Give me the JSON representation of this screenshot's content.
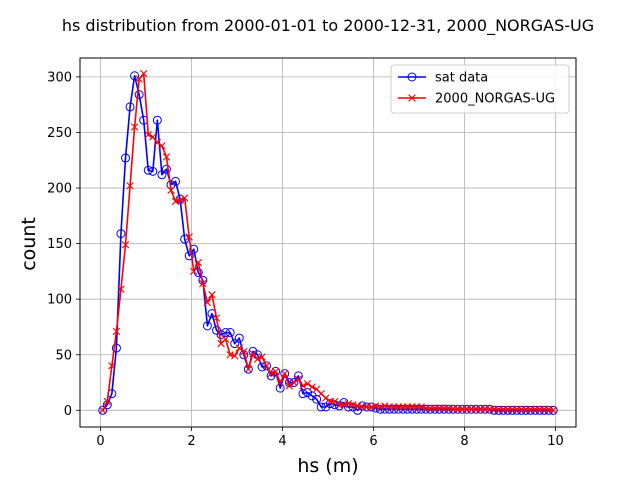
{
  "chart_data": {
    "type": "line",
    "title": "hs distribution from 2000-01-01 to 2000-12-31, 2000_NORGAS-UG",
    "xlabel": "hs (m)",
    "ylabel": "count",
    "xlim": [
      -0.45,
      10.45
    ],
    "ylim": [
      -15,
      317
    ],
    "xticks": [
      0,
      2,
      4,
      6,
      8,
      10
    ],
    "xtick_labels": [
      "0",
      "2",
      "4",
      "6",
      "8",
      "10"
    ],
    "yticks": [
      0,
      50,
      100,
      150,
      200,
      250,
      300
    ],
    "ytick_labels": [
      "0",
      "50",
      "100",
      "150",
      "200",
      "250",
      "300"
    ],
    "grid": true,
    "legend_position": "top-right",
    "series": [
      {
        "name": "sat data",
        "color": "#0000ff",
        "marker": "circle-open",
        "x": [
          0.05,
          0.15,
          0.25,
          0.35,
          0.45,
          0.55,
          0.65,
          0.75,
          0.85,
          0.95,
          1.05,
          1.15,
          1.25,
          1.35,
          1.45,
          1.55,
          1.65,
          1.75,
          1.85,
          1.95,
          2.05,
          2.15,
          2.25,
          2.35,
          2.45,
          2.55,
          2.65,
          2.75,
          2.85,
          2.95,
          3.05,
          3.15,
          3.25,
          3.35,
          3.45,
          3.55,
          3.65,
          3.75,
          3.85,
          3.95,
          4.05,
          4.15,
          4.25,
          4.35,
          4.45,
          4.55,
          4.65,
          4.75,
          4.85,
          4.95,
          5.05,
          5.15,
          5.25,
          5.35,
          5.45,
          5.55,
          5.65,
          5.75,
          5.85,
          5.95,
          6.05,
          6.15,
          6.25,
          6.35,
          6.45,
          6.55,
          6.65,
          6.75,
          6.85,
          6.95,
          7.05,
          7.15,
          7.25,
          7.35,
          7.45,
          7.55,
          7.65,
          7.75,
          7.85,
          7.95,
          8.05,
          8.15,
          8.25,
          8.35,
          8.45,
          8.55,
          8.65,
          8.75,
          8.85,
          8.95,
          9.05,
          9.15,
          9.25,
          9.35,
          9.45,
          9.55,
          9.65,
          9.75,
          9.85,
          9.95
        ],
        "y": [
          0,
          5,
          15,
          56,
          159,
          227,
          273,
          301,
          284,
          261,
          216,
          215,
          261,
          212,
          217,
          203,
          206,
          190,
          154,
          139,
          145,
          124,
          117,
          76,
          87,
          72,
          68,
          70,
          70,
          60,
          65,
          50,
          37,
          53,
          50,
          39,
          40,
          31,
          35,
          20,
          33,
          25,
          25,
          31,
          15,
          16,
          13,
          10,
          3,
          3,
          6,
          5,
          4,
          7,
          3,
          3,
          0,
          4,
          3,
          3,
          2,
          1,
          1,
          1,
          1,
          1,
          1,
          1,
          1,
          1,
          1,
          1,
          1,
          1,
          1,
          1,
          1,
          1,
          1,
          1,
          1,
          1,
          1,
          1,
          1,
          1,
          0,
          0,
          0,
          0,
          0,
          0,
          0,
          0,
          0,
          0,
          0,
          0,
          0,
          0
        ]
      },
      {
        "name": "2000_NORGAS-UG",
        "color": "#ff0000",
        "marker": "x",
        "x": [
          0.05,
          0.15,
          0.25,
          0.35,
          0.45,
          0.55,
          0.65,
          0.75,
          0.85,
          0.95,
          1.05,
          1.15,
          1.25,
          1.35,
          1.45,
          1.55,
          1.65,
          1.75,
          1.85,
          1.95,
          2.05,
          2.15,
          2.25,
          2.35,
          2.45,
          2.55,
          2.65,
          2.75,
          2.85,
          2.95,
          3.05,
          3.15,
          3.25,
          3.35,
          3.45,
          3.55,
          3.65,
          3.75,
          3.85,
          3.95,
          4.05,
          4.15,
          4.25,
          4.35,
          4.45,
          4.55,
          4.65,
          4.75,
          4.85,
          4.95,
          5.05,
          5.15,
          5.25,
          5.35,
          5.45,
          5.55,
          5.65,
          5.75,
          5.85,
          5.95,
          6.05,
          6.15,
          6.25,
          6.35,
          6.45,
          6.55,
          6.65,
          6.75,
          6.85,
          6.95,
          7.05,
          7.15,
          7.25,
          7.35,
          7.45,
          7.55,
          7.65,
          7.75,
          7.85,
          7.95,
          8.05,
          8.15,
          8.25,
          8.35,
          8.45,
          8.55,
          8.65,
          8.75,
          8.85,
          8.95,
          9.05,
          9.15,
          9.25,
          9.35,
          9.45,
          9.55,
          9.65,
          9.75,
          9.85,
          9.95
        ],
        "y": [
          0,
          8,
          40,
          71,
          109,
          149,
          202,
          255,
          298,
          303,
          248,
          246,
          241,
          238,
          228,
          198,
          188,
          189,
          191,
          156,
          125,
          133,
          114,
          97,
          104,
          83,
          60,
          64,
          50,
          49,
          56,
          53,
          37,
          51,
          46,
          48,
          40,
          33,
          35,
          25,
          33,
          22,
          25,
          28,
          22,
          24,
          21,
          19,
          15,
          11,
          8,
          8,
          5,
          5,
          6,
          5,
          4,
          3,
          3,
          3,
          4,
          3,
          4,
          3,
          3,
          3,
          3,
          3,
          3,
          3,
          3,
          2,
          2,
          2,
          2,
          2,
          2,
          1,
          1,
          1,
          1,
          1,
          1,
          1,
          1,
          1,
          1,
          1,
          1,
          1,
          1,
          1,
          1,
          1,
          1,
          1,
          1,
          1,
          1,
          0
        ]
      }
    ]
  }
}
